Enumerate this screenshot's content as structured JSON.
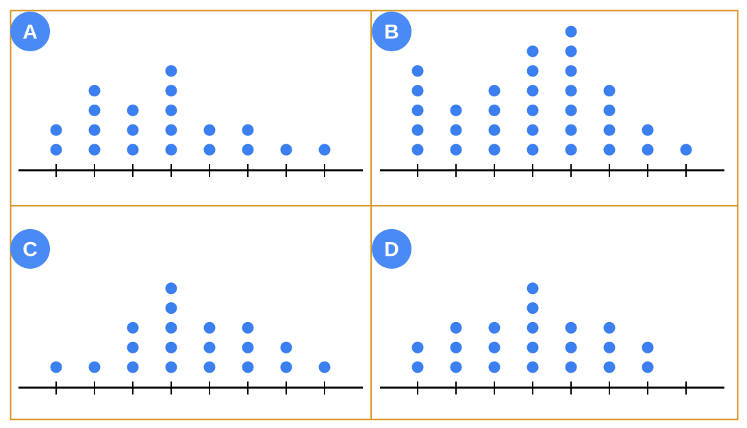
{
  "chart_data": [
    {
      "type": "dot",
      "label": "A",
      "values": [
        2,
        4,
        3,
        5,
        2,
        2,
        1,
        1
      ],
      "color": "#3b7ff0"
    },
    {
      "type": "dot",
      "label": "B",
      "values": [
        5,
        3,
        4,
        6,
        7,
        4,
        2,
        1
      ],
      "color": "#3b7ff0"
    },
    {
      "type": "dot",
      "label": "C",
      "values": [
        1,
        1,
        3,
        5,
        3,
        3,
        2,
        1
      ],
      "color": "#3b7ff0"
    },
    {
      "type": "dot",
      "label": "D",
      "values": [
        2,
        3,
        3,
        5,
        3,
        3,
        2,
        0
      ],
      "color": "#3b7ff0"
    }
  ]
}
